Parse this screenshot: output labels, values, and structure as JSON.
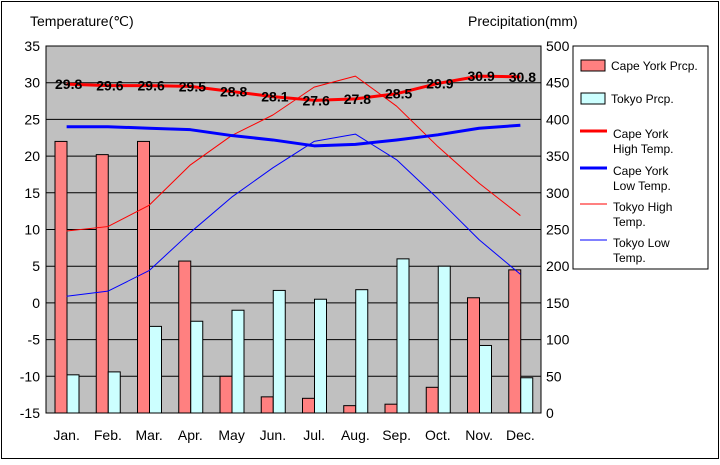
{
  "chart_data": {
    "type": "bar+line",
    "y_left_label": "Temperature(℃)",
    "y_right_label": "Precipitation(mm)",
    "y_left_range": [
      -15,
      35
    ],
    "y_left_ticks": [
      "35",
      "30",
      "25",
      "20",
      "15",
      "10",
      "5",
      "0",
      "-5",
      "-10",
      "-15"
    ],
    "y_right_range": [
      0,
      500
    ],
    "y_right_ticks": [
      "500",
      "450",
      "400",
      "350",
      "300",
      "250",
      "200",
      "150",
      "100",
      "50",
      "0"
    ],
    "grid": true,
    "legend_position": "right",
    "categories": [
      "Jan.",
      "Feb.",
      "Mar.",
      "Apr.",
      "May",
      "Jun.",
      "Jul.",
      "Aug.",
      "Sep.",
      "Oct.",
      "Nov.",
      "Dec."
    ],
    "bar_series": [
      {
        "name": "Cape York Prcp.",
        "color": "#ff8080",
        "values": [
          370,
          352,
          370,
          207,
          50,
          22,
          20,
          10,
          12,
          35,
          157,
          195
        ]
      },
      {
        "name": "Tokyo Prcp.",
        "color": "#ccffff",
        "values": [
          52,
          56,
          118,
          125,
          140,
          167,
          155,
          168,
          210,
          200,
          92,
          48
        ]
      }
    ],
    "line_series": [
      {
        "name": "Cape York High Temp.",
        "legend_lines": [
          "Cape York",
          "High Temp."
        ],
        "color": "#ff0000",
        "width": 3,
        "values": [
          29.8,
          29.6,
          29.6,
          29.5,
          28.8,
          28.1,
          27.6,
          27.8,
          28.5,
          29.9,
          30.9,
          30.8
        ],
        "labels": [
          "29.8",
          "29.6",
          "29.6",
          "29.5",
          "28.8",
          "28.1",
          "27.6",
          "27.8",
          "28.5",
          "29.9",
          "30.9",
          "30.8"
        ]
      },
      {
        "name": "Cape York Low Temp.",
        "legend_lines": [
          "Cape York",
          "Low Temp."
        ],
        "color": "#0000ff",
        "width": 3,
        "values": [
          24.0,
          24.0,
          23.8,
          23.6,
          22.8,
          22.2,
          21.4,
          21.6,
          22.2,
          22.9,
          23.8,
          24.2
        ]
      },
      {
        "name": "Tokyo High Temp.",
        "legend_lines": [
          "Tokyo High",
          "Temp."
        ],
        "color": "#ff0000",
        "width": 1,
        "values": [
          9.8,
          10.4,
          13.3,
          18.8,
          22.8,
          25.6,
          29.4,
          30.9,
          26.8,
          21.3,
          16.3,
          11.9
        ]
      },
      {
        "name": "Tokyo Low Temp.",
        "legend_lines": [
          "Tokyo Low",
          "Temp."
        ],
        "color": "#0000ff",
        "width": 1,
        "values": [
          0.9,
          1.6,
          4.4,
          9.6,
          14.4,
          18.4,
          22.0,
          23.0,
          19.5,
          14.2,
          8.6,
          3.9
        ]
      }
    ]
  }
}
